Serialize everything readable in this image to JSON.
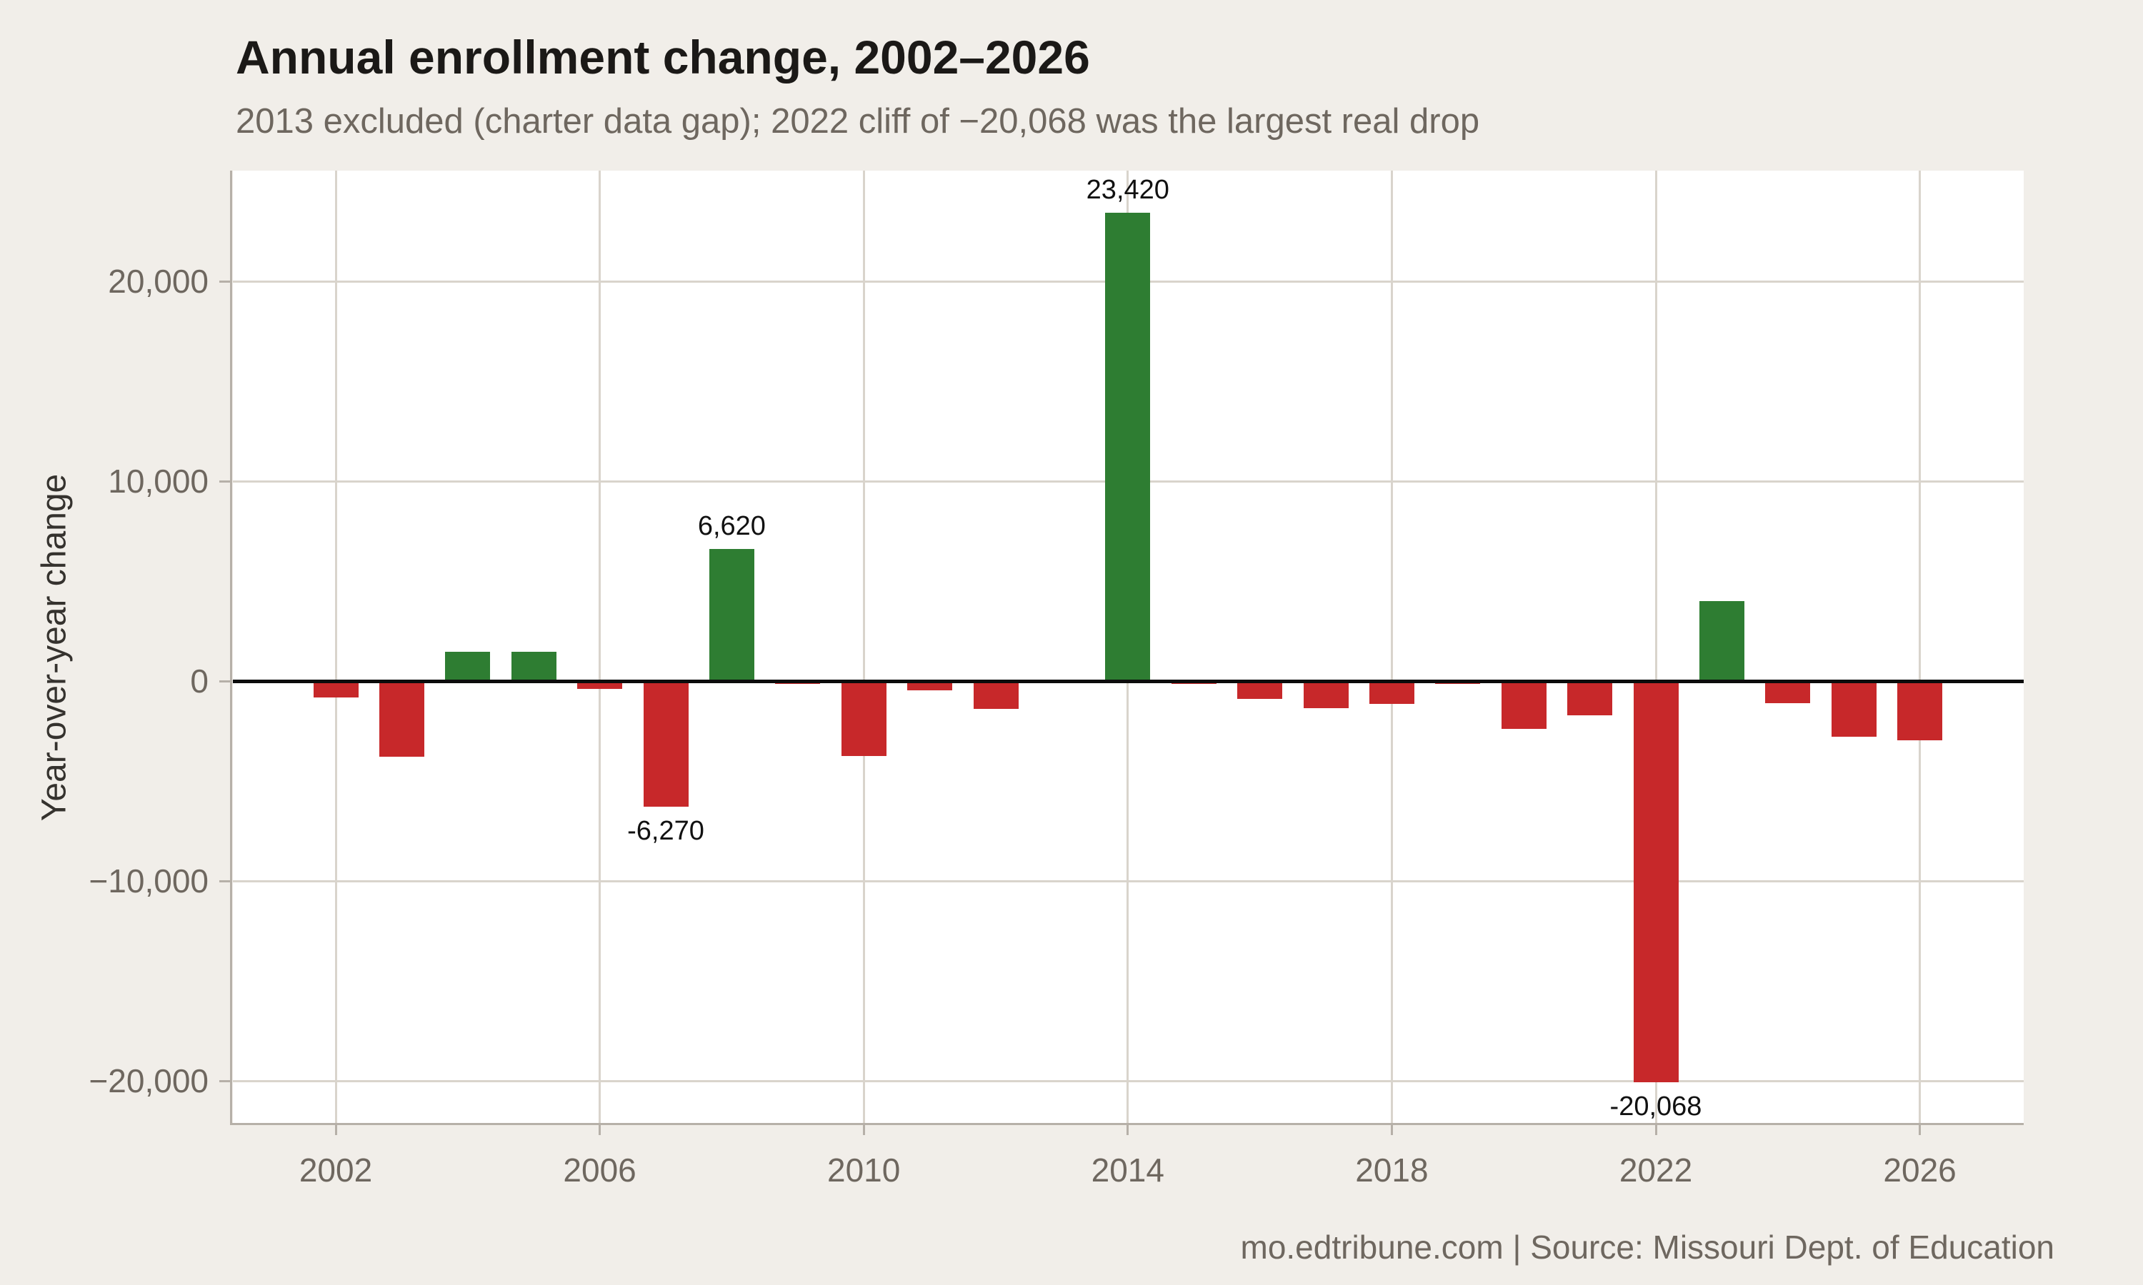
{
  "header": {
    "title": "Annual enrollment change, 2002–2026",
    "subtitle": "2013 excluded (charter data gap); 2022 cliff of −20,068 was the largest real drop"
  },
  "footer": {
    "credit": "mo.edtribune.com | Source: Missouri Dept. of Education"
  },
  "chart_data": {
    "type": "bar",
    "title": "Annual enrollment change, 2002–2026",
    "subtitle": "2013 excluded (charter data gap); 2022 cliff of −20,068 was the largest real drop",
    "xlabel": "",
    "ylabel": "Year-over-year change",
    "grid": true,
    "legend": "none",
    "ylim": [
      -22200,
      25500
    ],
    "colors": {
      "positive": "#2e7d32",
      "negative": "#c7282a"
    },
    "excluded_year": 2013,
    "points": [
      {
        "year": 2002,
        "value": -830
      },
      {
        "year": 2003,
        "value": -3800
      },
      {
        "year": 2004,
        "value": 1450
      },
      {
        "year": 2005,
        "value": 1450
      },
      {
        "year": 2006,
        "value": -380
      },
      {
        "year": 2007,
        "value": -6270,
        "label": "-6,270"
      },
      {
        "year": 2008,
        "value": 6620,
        "label": "6,620"
      },
      {
        "year": 2009,
        "value": -150
      },
      {
        "year": 2010,
        "value": -3750
      },
      {
        "year": 2011,
        "value": -480
      },
      {
        "year": 2012,
        "value": -1400
      },
      {
        "year": 2013,
        "value": null
      },
      {
        "year": 2014,
        "value": 23420,
        "label": "23,420"
      },
      {
        "year": 2015,
        "value": -150
      },
      {
        "year": 2016,
        "value": -890
      },
      {
        "year": 2017,
        "value": -1350
      },
      {
        "year": 2018,
        "value": -1160
      },
      {
        "year": 2019,
        "value": -150
      },
      {
        "year": 2020,
        "value": -2400
      },
      {
        "year": 2021,
        "value": -1720
      },
      {
        "year": 2022,
        "value": -20068,
        "label": "-20,068"
      },
      {
        "year": 2023,
        "value": 4000
      },
      {
        "year": 2024,
        "value": -1100
      },
      {
        "year": 2025,
        "value": -2800
      },
      {
        "year": 2026,
        "value": -2950
      }
    ],
    "x_ticks": [
      2002,
      2006,
      2010,
      2014,
      2018,
      2022,
      2026
    ],
    "y_ticks": [
      {
        "value": 20000,
        "label": "20,000"
      },
      {
        "value": 10000,
        "label": "10,000"
      },
      {
        "value": 0,
        "label": "0"
      },
      {
        "value": -10000,
        "label": "−10,000"
      },
      {
        "value": -20000,
        "label": "−20,000"
      }
    ]
  }
}
